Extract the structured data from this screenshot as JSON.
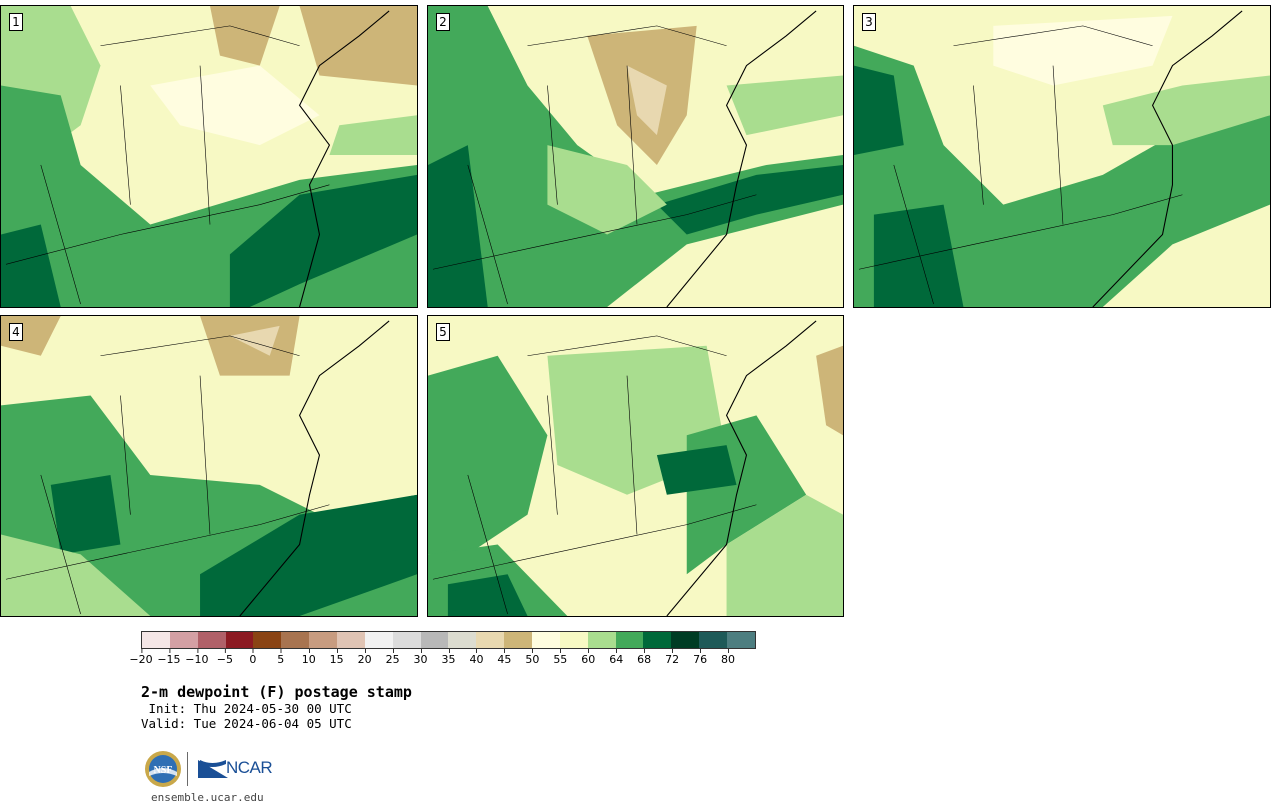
{
  "title": "2-m dewpoint (F) postage stamp",
  "init": " Init: Thu 2024-05-30 00 UTC",
  "valid": "Valid: Tue 2024-06-04 05 UTC",
  "website": "ensemble.ucar.edu",
  "logos": {
    "nsf": "NSF",
    "ncar": "NCAR"
  },
  "panels": [
    {
      "label": "1"
    },
    {
      "label": "2"
    },
    {
      "label": "3"
    },
    {
      "label": "4"
    },
    {
      "label": "5"
    }
  ],
  "colorbar": {
    "colors": [
      "#f4e6e6",
      "#d4a0a4",
      "#b06068",
      "#8c1a22",
      "#8a4414",
      "#a87450",
      "#c89c80",
      "#e0c4b4",
      "#f2f2f2",
      "#dcdcdc",
      "#b8b8b8",
      "#dcdcd0",
      "#e8d8b0",
      "#cdb578",
      "#fffde0",
      "#f7f9c4",
      "#a9dd8f",
      "#43a95a",
      "#00693a",
      "#003c24",
      "#1e5a58",
      "#4d7e80"
    ],
    "tick_labels": [
      "−20",
      "−15",
      "−10",
      "−5",
      "0",
      "5",
      "10",
      "15",
      "20",
      "25",
      "30",
      "35",
      "40",
      "45",
      "50",
      "55",
      "60",
      "64",
      "68",
      "72",
      "76",
      "80"
    ]
  }
}
